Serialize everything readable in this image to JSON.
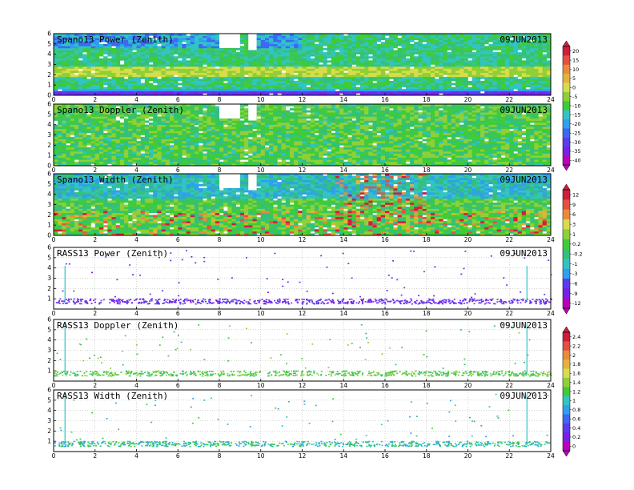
{
  "chart_data": [
    {
      "type": "heatmap",
      "title": "Spano13 Power (Zenith)",
      "date": "09JUN2013",
      "x_ticks": [
        "0",
        "2",
        "4",
        "6",
        "8",
        "10",
        "12",
        "14",
        "16",
        "18",
        "20",
        "22",
        "24"
      ],
      "y_ticks": [
        "0",
        "1",
        "2",
        "3",
        "4",
        "5",
        "6"
      ],
      "xlim": [
        0,
        24
      ],
      "ylim": [
        0,
        6
      ],
      "colorbar": "power"
    },
    {
      "type": "heatmap",
      "title": "Spano13 Doppler (Zenith)",
      "date": "09JUN2013",
      "x_ticks": [
        "0",
        "2",
        "4",
        "6",
        "8",
        "10",
        "12",
        "14",
        "16",
        "18",
        "20",
        "22",
        "24"
      ],
      "y_ticks": [
        "0",
        "1",
        "2",
        "3",
        "4",
        "5",
        "6"
      ],
      "xlim": [
        0,
        24
      ],
      "ylim": [
        0,
        6
      ],
      "colorbar": "power"
    },
    {
      "type": "heatmap",
      "title": "Spano13 Width (Zenith)",
      "date": "09JUN2013",
      "x_ticks": [
        "0",
        "2",
        "4",
        "6",
        "8",
        "10",
        "12",
        "14",
        "16",
        "18",
        "20",
        "22",
        "24"
      ],
      "y_ticks": [
        "0",
        "1",
        "2",
        "3",
        "4",
        "5",
        "6"
      ],
      "xlim": [
        0,
        24
      ],
      "ylim": [
        0,
        6
      ],
      "colorbar": "doppler"
    },
    {
      "type": "scatter",
      "title": "RASS13 Power (Zenith)",
      "date": "09JUN2013",
      "x_ticks": [
        "0",
        "2",
        "4",
        "6",
        "8",
        "10",
        "12",
        "14",
        "16",
        "18",
        "20",
        "22",
        "24"
      ],
      "y_ticks": [
        "1",
        "2",
        "3",
        "4",
        "5",
        "6"
      ],
      "xlim": [
        0,
        24
      ],
      "ylim": [
        0,
        6
      ],
      "colorbar": "doppler"
    },
    {
      "type": "scatter",
      "title": "RASS13 Doppler (Zenith)",
      "date": "09JUN2013",
      "x_ticks": [
        "0",
        "2",
        "4",
        "6",
        "8",
        "10",
        "12",
        "14",
        "16",
        "18",
        "20",
        "22",
        "24"
      ],
      "y_ticks": [
        "1",
        "2",
        "3",
        "4",
        "5",
        "6"
      ],
      "xlim": [
        0,
        24
      ],
      "ylim": [
        0,
        6
      ],
      "colorbar": "width"
    },
    {
      "type": "scatter",
      "title": "RASS13 Width (Zenith)",
      "date": "09JUN2013",
      "x_ticks": [
        "0",
        "2",
        "4",
        "6",
        "8",
        "10",
        "12",
        "14",
        "16",
        "18",
        "20",
        "22",
        "24"
      ],
      "y_ticks": [
        "1",
        "2",
        "3",
        "4",
        "5",
        "6"
      ],
      "xlim": [
        0,
        24
      ],
      "ylim": [
        0,
        6
      ],
      "colorbar": "width"
    }
  ],
  "colorbars": {
    "power": {
      "labels": [
        "20",
        "15",
        "10",
        "5",
        "0",
        "-5",
        "-10",
        "-15",
        "-20",
        "-25",
        "-30",
        "-35",
        "-40"
      ]
    },
    "doppler": {
      "labels": [
        "12",
        "9",
        "6",
        "3",
        "1",
        "0.2",
        "-0.2",
        "-1",
        "-3",
        "-6",
        "-9",
        "-12"
      ]
    },
    "width": {
      "labels": [
        "2.4",
        "2.2",
        "2",
        "1.8",
        "1.6",
        "1.4",
        "1.2",
        "1",
        "0.8",
        "0.6",
        "0.4",
        "0.2",
        "0"
      ]
    }
  },
  "colormap": [
    "#b800b8",
    "#7a1fe8",
    "#5a3cf0",
    "#3c68f2",
    "#2ea0ee",
    "#31c4c4",
    "#33c07a",
    "#3fcc36",
    "#8ed036",
    "#d9dc4a",
    "#e6b33a",
    "#ec8a3a",
    "#e65040",
    "#d01e3a"
  ]
}
